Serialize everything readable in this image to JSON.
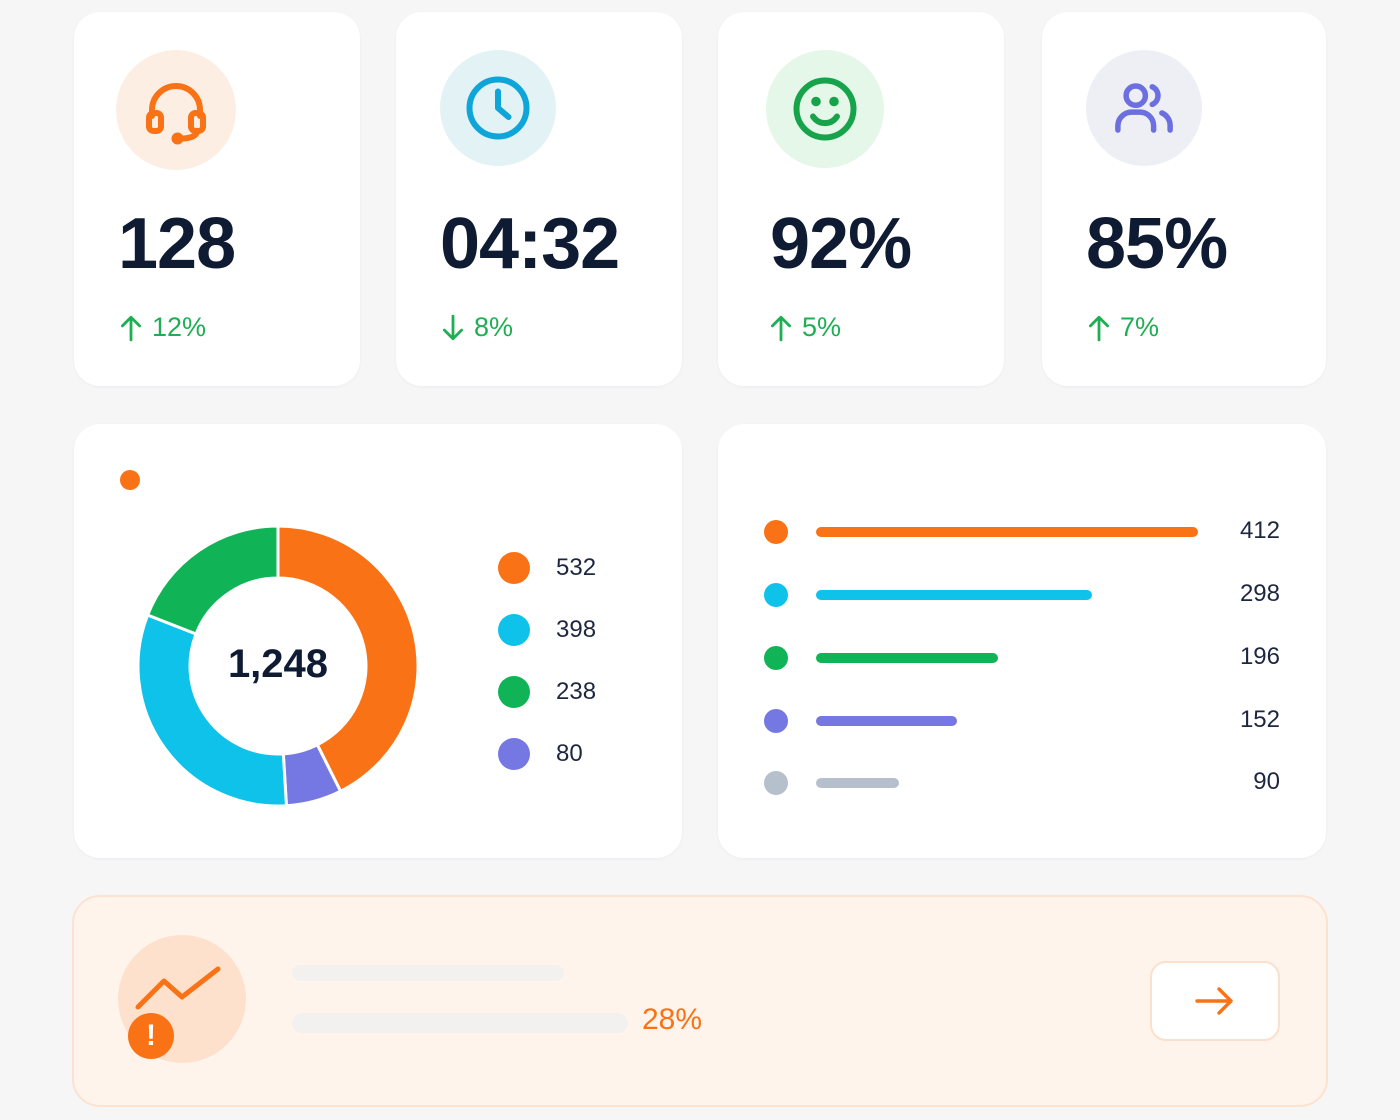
{
  "kpis": [
    {
      "icon": "headset-icon",
      "value": "128",
      "delta": "12%",
      "direction": "up",
      "icon_color": "#f97316",
      "icon_bg": "#fdeee3"
    },
    {
      "icon": "clock-icon",
      "value": "04:32",
      "delta": "8%",
      "direction": "down",
      "icon_color": "#0ea5d9",
      "icon_bg": "#e3f3f5"
    },
    {
      "icon": "smile-icon",
      "value": "92%",
      "delta": "5%",
      "direction": "up",
      "icon_color": "#16a34a",
      "icon_bg": "#e4f7e9"
    },
    {
      "icon": "users-icon",
      "value": "85%",
      "delta": "7%",
      "direction": "up",
      "icon_color": "#6b6fe0",
      "icon_bg": "#eeeff4"
    }
  ],
  "donut": {
    "legend_dot_color": "#f97316",
    "total": "1,248",
    "segments": [
      {
        "value": 532,
        "label": "532",
        "color": "#f97316"
      },
      {
        "value": 80,
        "label": "80",
        "color": "#7577e2"
      },
      {
        "value": 398,
        "label": "398",
        "color": "#0ec2ea"
      },
      {
        "value": 238,
        "label": "238",
        "color": "#10b456"
      }
    ],
    "legend": [
      {
        "label": "532",
        "color": "#f97316"
      },
      {
        "label": "398",
        "color": "#0ec2ea"
      },
      {
        "label": "238",
        "color": "#10b456"
      },
      {
        "label": "80",
        "color": "#7577e2"
      }
    ]
  },
  "bars": {
    "max": 412,
    "items": [
      {
        "value": 412,
        "label": "412",
        "color": "#f97316"
      },
      {
        "value": 298,
        "label": "298",
        "color": "#0ec2ea"
      },
      {
        "value": 196,
        "label": "196",
        "color": "#10b456"
      },
      {
        "value": 152,
        "label": "152",
        "color": "#7577e2"
      },
      {
        "value": 90,
        "label": "90",
        "color": "#b6bfcc"
      }
    ]
  },
  "alert": {
    "icon": "trend-up-icon",
    "badge_icon": "exclamation-icon",
    "badge": "!",
    "percent": "28%",
    "button_icon": "arrow-right-icon",
    "accent": "#f97316"
  },
  "colors": {
    "up": "#1fae53",
    "down": "#1fae53"
  }
}
